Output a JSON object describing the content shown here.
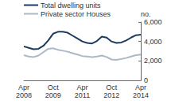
{
  "chart_data": {
    "type": "line",
    "y_label": "no.",
    "categories": [
      "Apr\n2008",
      null,
      null,
      null,
      null,
      null,
      "Oct\n2009",
      null,
      null,
      null,
      null,
      null,
      "Apr\n2011",
      null,
      null,
      null,
      null,
      null,
      "Oct\n2012",
      null,
      null,
      null,
      null,
      null,
      "Apr\n2014"
    ],
    "series": [
      {
        "name": "Total dwelling units",
        "color": "#1f3a5f",
        "values": [
          3500,
          3350,
          3200,
          3250,
          3550,
          4100,
          4800,
          5000,
          5000,
          4900,
          4600,
          4300,
          4000,
          3850,
          3800,
          4050,
          4500,
          4400,
          4000,
          3850,
          3900,
          4100,
          4400,
          4650,
          4700
        ]
      },
      {
        "name": "Private sector Houses",
        "color": "#a9b9c9",
        "values": [
          2600,
          2450,
          2400,
          2550,
          2900,
          3250,
          3300,
          3150,
          3050,
          2950,
          2800,
          2650,
          2500,
          2450,
          2400,
          2450,
          2550,
          2400,
          2150,
          2100,
          2200,
          2300,
          2450,
          2600,
          2650
        ]
      }
    ],
    "ylim": [
      0,
      6000
    ],
    "yticks": [
      0,
      2000,
      4000,
      6000
    ],
    "grid": false,
    "legend": "top-left"
  }
}
